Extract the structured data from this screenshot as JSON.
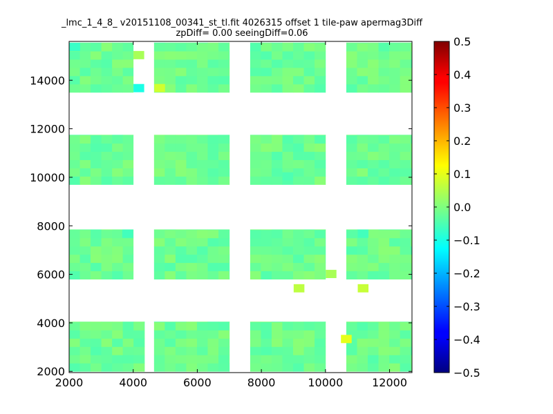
{
  "chart_data": {
    "type": "heatmap",
    "title": "_lmc_1_4_8_ v20151108_00341_st_tl.fit 4026315 offset 1 tile-paw apermag3Diff",
    "subtitle": "zpDiff= 0.00 seeingDiff=0.06",
    "xlabel": "",
    "ylabel": "",
    "xlim": [
      2000,
      12700
    ],
    "ylim": [
      1950,
      15600
    ],
    "xticks": [
      2000,
      4000,
      6000,
      8000,
      10000,
      12000
    ],
    "yticks": [
      2000,
      4000,
      6000,
      8000,
      10000,
      12000,
      14000
    ],
    "grid": false,
    "colorbar": {
      "colormap": "jet",
      "vmin": -0.5,
      "vmax": 0.5,
      "ticks": [
        0.5,
        0.4,
        0.3,
        0.2,
        0.1,
        0.0,
        -0.1,
        -0.2,
        -0.3,
        -0.4,
        -0.5
      ],
      "tick_labels": [
        "0.5",
        "0.4",
        "0.3",
        "0.2",
        "0.1",
        "0.0",
        "−0.1",
        "−0.2",
        "−0.3",
        "−0.4",
        "−0.5"
      ]
    },
    "cell_size": [
      335,
      340
    ],
    "typical_value": -0.02,
    "detectors": [
      {
        "x": [
          2000,
          4000
        ],
        "y": [
          13500,
          15550
        ]
      },
      {
        "x": [
          4650,
          7000
        ],
        "y": [
          13500,
          15550
        ]
      },
      {
        "x": [
          7650,
          10000
        ],
        "y": [
          13500,
          15550
        ]
      },
      {
        "x": [
          10650,
          12700
        ],
        "y": [
          13500,
          15550
        ]
      },
      {
        "x": [
          2000,
          4000
        ],
        "y": [
          9700,
          11750
        ]
      },
      {
        "x": [
          4650,
          7000
        ],
        "y": [
          9700,
          11750
        ]
      },
      {
        "x": [
          7650,
          10000
        ],
        "y": [
          9700,
          11750
        ]
      },
      {
        "x": [
          10650,
          12700
        ],
        "y": [
          9700,
          11750
        ]
      },
      {
        "x": [
          2000,
          4000
        ],
        "y": [
          5800,
          7850
        ]
      },
      {
        "x": [
          4650,
          7000
        ],
        "y": [
          5800,
          7850
        ]
      },
      {
        "x": [
          7650,
          10000
        ],
        "y": [
          5800,
          7850
        ]
      },
      {
        "x": [
          10650,
          12700
        ],
        "y": [
          5800,
          7850
        ]
      },
      {
        "x": [
          2000,
          4350
        ],
        "y": [
          2000,
          4050
        ]
      },
      {
        "x": [
          4650,
          7000
        ],
        "y": [
          2000,
          4050
        ]
      },
      {
        "x": [
          7650,
          10000
        ],
        "y": [
          2000,
          4050
        ]
      },
      {
        "x": [
          10650,
          12700
        ],
        "y": [
          2000,
          4050
        ]
      }
    ],
    "highlight_cells": [
      {
        "x": 2175,
        "y": 15375,
        "value": -0.07
      },
      {
        "x": 4175,
        "y": 13675,
        "value": -0.1
      },
      {
        "x": 4825,
        "y": 13675,
        "value": 0.08
      },
      {
        "x": 4175,
        "y": 15035,
        "value": 0.04
      },
      {
        "x": 11175,
        "y": 5425,
        "value": 0.07
      },
      {
        "x": 9175,
        "y": 5425,
        "value": 0.06
      },
      {
        "x": 10175,
        "y": 6015,
        "value": 0.04
      },
      {
        "x": 10650,
        "y": 3335,
        "value": 0.1
      },
      {
        "x": 8825,
        "y": 10035,
        "value": -0.05
      },
      {
        "x": 3825,
        "y": 7675,
        "value": -0.06
      },
      {
        "x": 11175,
        "y": 7675,
        "value": -0.06
      }
    ]
  }
}
